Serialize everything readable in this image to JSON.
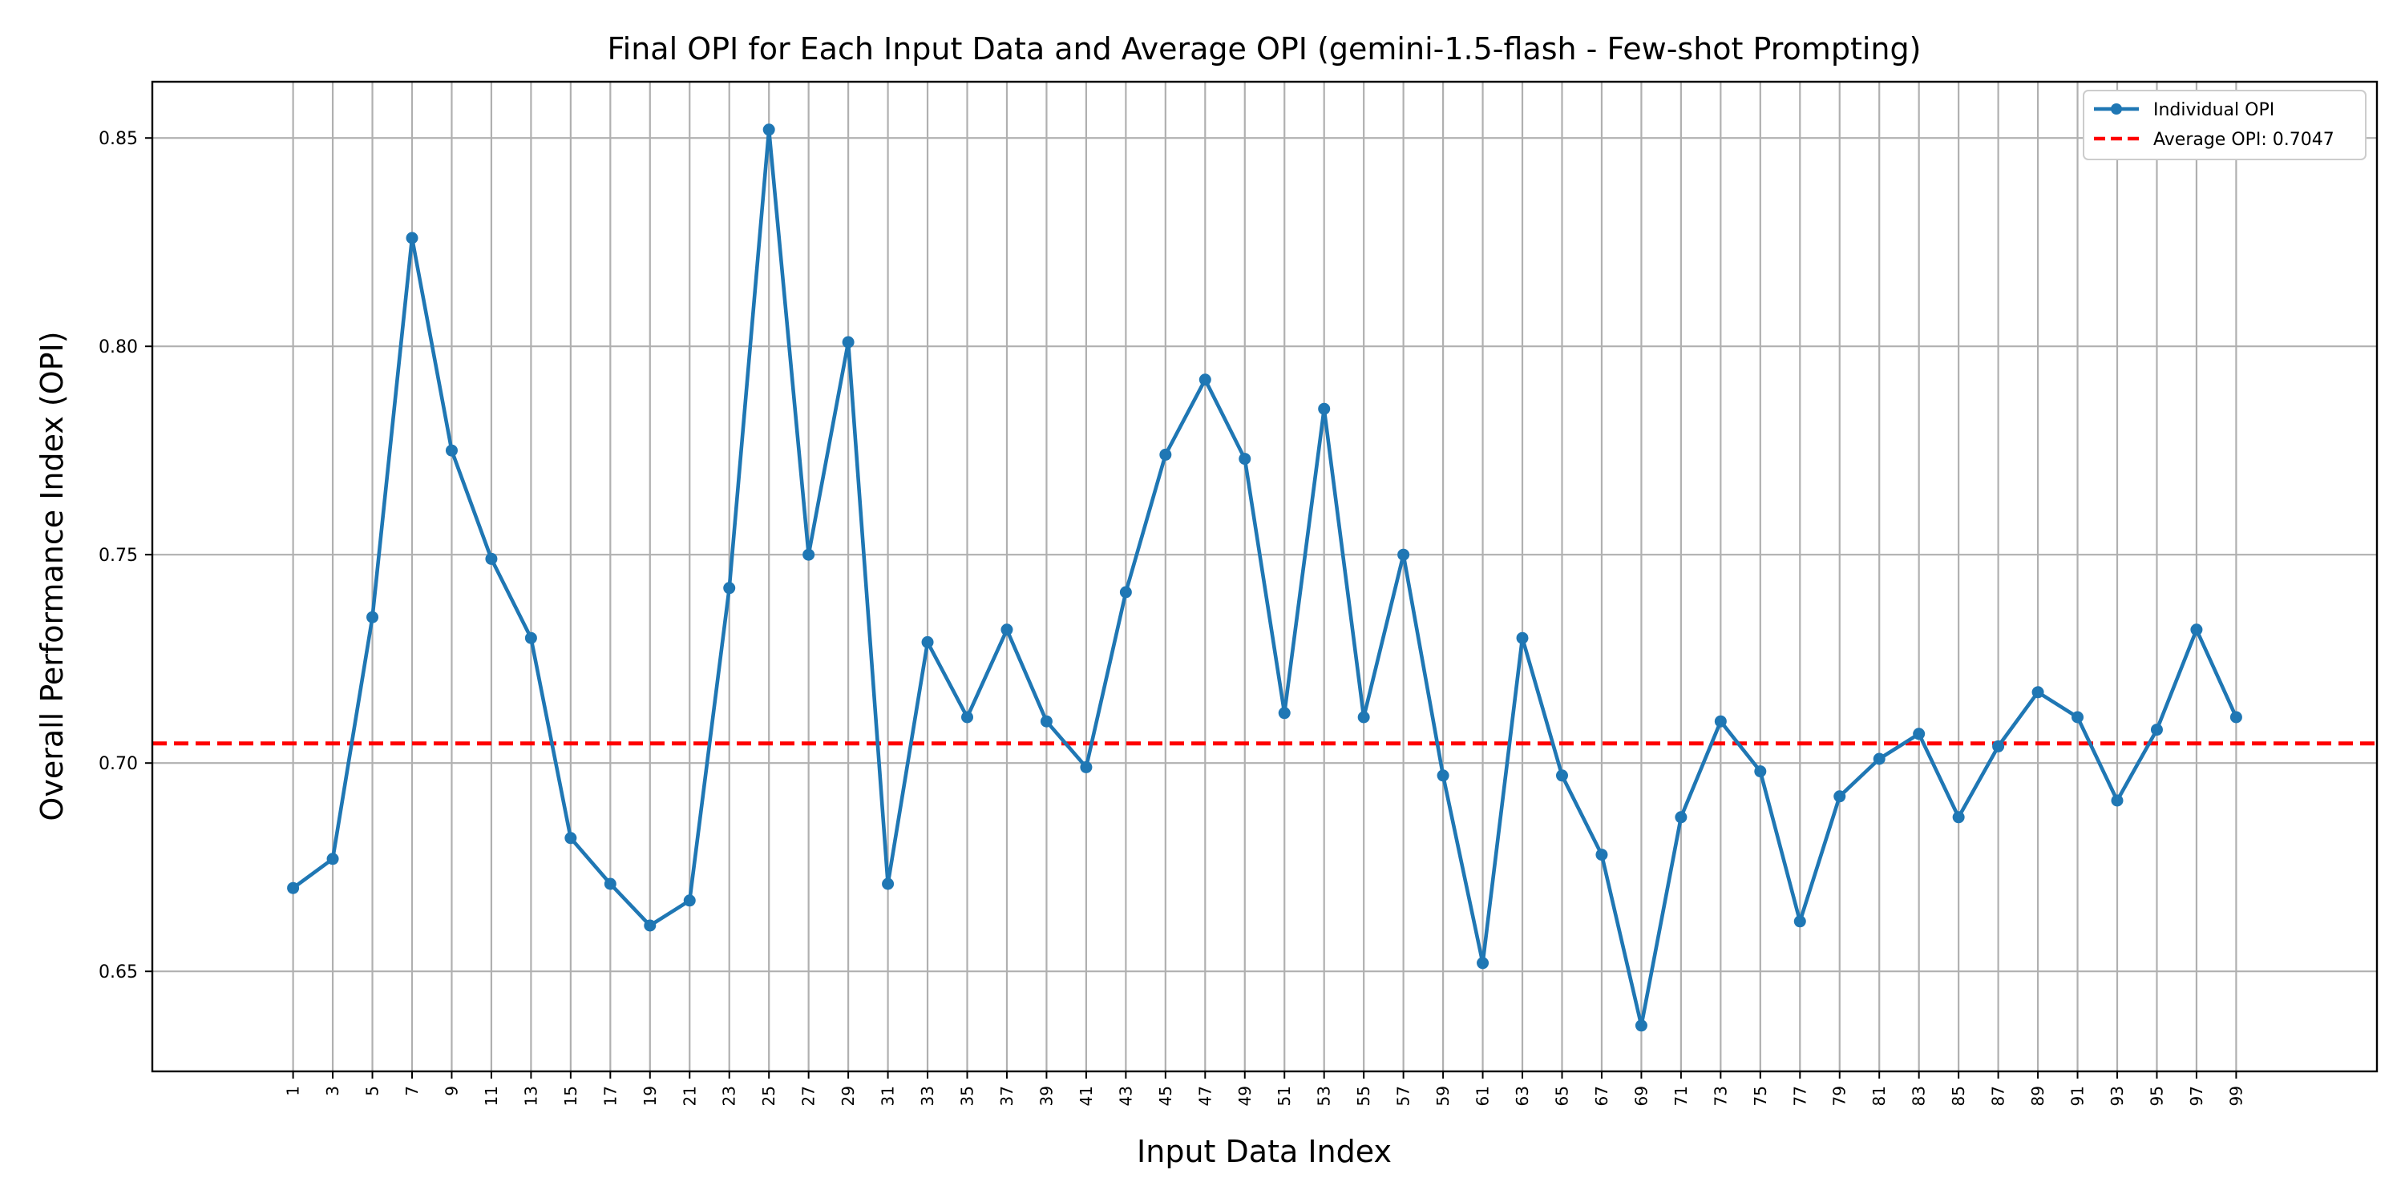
{
  "chart_data": {
    "type": "line",
    "title": "Final OPI for Each Input Data and Average OPI (gemini-1.5-flash - Few-shot Prompting)",
    "xlabel": "Input Data Index",
    "ylabel": "Overall Performance Index (OPI)",
    "x": [
      1,
      3,
      5,
      7,
      9,
      11,
      13,
      15,
      17,
      19,
      21,
      23,
      25,
      27,
      29,
      31,
      33,
      35,
      37,
      39,
      41,
      43,
      45,
      47,
      49,
      51,
      53,
      55,
      57,
      59,
      61,
      63,
      65,
      67,
      69,
      71,
      73,
      75,
      77,
      79,
      81,
      83,
      85,
      87,
      89,
      91,
      93,
      95,
      97,
      99
    ],
    "series": [
      {
        "name": "Individual OPI",
        "color": "#1f77b4",
        "values": [
          0.67,
          0.677,
          0.735,
          0.826,
          0.775,
          0.749,
          0.73,
          0.682,
          0.671,
          0.661,
          0.667,
          0.742,
          0.852,
          0.75,
          0.801,
          0.671,
          0.729,
          0.711,
          0.732,
          0.71,
          0.699,
          0.741,
          0.774,
          0.792,
          0.773,
          0.712,
          0.785,
          0.711,
          0.75,
          0.697,
          0.652,
          0.73,
          0.697,
          0.678,
          0.637,
          0.687,
          0.71,
          0.698,
          0.662,
          0.692,
          0.701,
          0.707,
          0.687,
          0.704,
          0.717,
          0.711,
          0.691,
          0.708,
          0.732,
          0.711
        ]
      }
    ],
    "average": {
      "name": "Average OPI: 0.7047",
      "value": 0.7047,
      "color": "#ff0000",
      "style": "dashed"
    },
    "xticks": [
      "1",
      "3",
      "5",
      "7",
      "9",
      "11",
      "13",
      "15",
      "17",
      "19",
      "21",
      "23",
      "25",
      "27",
      "29",
      "31",
      "33",
      "35",
      "37",
      "39",
      "41",
      "43",
      "45",
      "47",
      "49",
      "51",
      "53",
      "55",
      "57",
      "59",
      "61",
      "63",
      "65",
      "67",
      "69",
      "71",
      "73",
      "75",
      "77",
      "79",
      "81",
      "83",
      "85",
      "87",
      "89",
      "91",
      "93",
      "95",
      "97",
      "99"
    ],
    "yticks": [
      {
        "value": 0.65,
        "label": "0.65"
      },
      {
        "value": 0.7,
        "label": "0.70"
      },
      {
        "value": 0.75,
        "label": "0.75"
      },
      {
        "value": 0.8,
        "label": "0.80"
      },
      {
        "value": 0.85,
        "label": "0.85"
      }
    ],
    "xlim": [
      -6.1,
      106.1
    ],
    "ylim": [
      0.626,
      0.8635
    ],
    "grid": true,
    "legend_position": "top-right"
  }
}
